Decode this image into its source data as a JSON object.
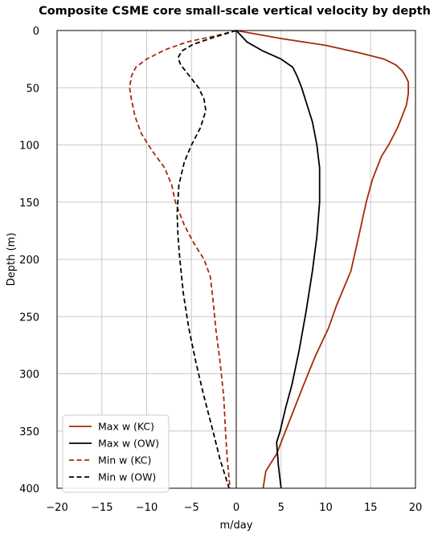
{
  "chart_data": {
    "type": "line",
    "title": "Composite CSME core small-scale vertical velocity by depth",
    "xlabel": "m/day",
    "ylabel": "Depth (m)",
    "xlim": [
      -20,
      20
    ],
    "ylim": [
      0,
      400
    ],
    "y_inverted": true,
    "grid": true,
    "legend_position": "bottom-left",
    "x_ticks": [
      "−20",
      "−15",
      "−10",
      "−5",
      "0",
      "5",
      "10",
      "15",
      "20"
    ],
    "y_ticks": [
      "0",
      "50",
      "100",
      "150",
      "200",
      "250",
      "300",
      "350",
      "400"
    ],
    "series": [
      {
        "name": "Max w (KC)",
        "color": "#a52a0c",
        "dash": "solid",
        "points": [
          [
            0,
            0
          ],
          [
            5,
            7
          ],
          [
            10,
            13
          ],
          [
            14,
            20
          ],
          [
            16.5,
            25
          ],
          [
            17.8,
            30
          ],
          [
            18.5,
            35
          ],
          [
            18.9,
            40
          ],
          [
            19.2,
            45
          ],
          [
            19.2,
            50
          ],
          [
            19.2,
            55
          ],
          [
            19.0,
            65
          ],
          [
            18.5,
            75
          ],
          [
            18.0,
            85
          ],
          [
            17.0,
            100
          ],
          [
            16.2,
            110
          ],
          [
            15.2,
            130
          ],
          [
            14.5,
            150
          ],
          [
            13.8,
            175
          ],
          [
            12.8,
            210
          ],
          [
            11.2,
            240
          ],
          [
            10.3,
            260
          ],
          [
            8.8,
            285
          ],
          [
            7.5,
            310
          ],
          [
            6.0,
            340
          ],
          [
            4.5,
            370
          ],
          [
            3.3,
            385
          ],
          [
            3.0,
            400
          ]
        ]
      },
      {
        "name": "Max w (OW)",
        "color": "#000000",
        "dash": "solid",
        "points": [
          [
            0,
            0
          ],
          [
            1.2,
            10
          ],
          [
            3,
            18
          ],
          [
            5,
            25
          ],
          [
            6.3,
            32
          ],
          [
            6.8,
            40
          ],
          [
            7.3,
            50
          ],
          [
            7.9,
            65
          ],
          [
            8.5,
            80
          ],
          [
            9.0,
            100
          ],
          [
            9.3,
            120
          ],
          [
            9.3,
            150
          ],
          [
            9.0,
            180
          ],
          [
            8.5,
            210
          ],
          [
            7.8,
            245
          ],
          [
            7.0,
            280
          ],
          [
            6.2,
            310
          ],
          [
            5.5,
            330
          ],
          [
            4.9,
            350
          ],
          [
            4.5,
            360
          ],
          [
            4.7,
            380
          ],
          [
            5.0,
            400
          ]
        ]
      },
      {
        "name": "Min w (KC)",
        "color": "#a52a0c",
        "dash": "dashed",
        "points": [
          [
            0,
            0
          ],
          [
            -2.5,
            5
          ],
          [
            -5.5,
            10
          ],
          [
            -8,
            17
          ],
          [
            -10,
            25
          ],
          [
            -11.2,
            32
          ],
          [
            -11.7,
            40
          ],
          [
            -11.9,
            50
          ],
          [
            -11.7,
            60
          ],
          [
            -11.3,
            75
          ],
          [
            -10.6,
            90
          ],
          [
            -9.4,
            105
          ],
          [
            -8.0,
            120
          ],
          [
            -7.2,
            135
          ],
          [
            -6.8,
            150
          ],
          [
            -5.8,
            170
          ],
          [
            -4.8,
            185
          ],
          [
            -3.6,
            200
          ],
          [
            -2.9,
            215
          ],
          [
            -2.6,
            235
          ],
          [
            -2.3,
            260
          ],
          [
            -1.8,
            290
          ],
          [
            -1.4,
            320
          ],
          [
            -1.2,
            350
          ],
          [
            -1.0,
            375
          ],
          [
            -0.7,
            400
          ]
        ]
      },
      {
        "name": "Min w (OW)",
        "color": "#000000",
        "dash": "dashed",
        "points": [
          [
            0,
            0
          ],
          [
            -2.5,
            6
          ],
          [
            -4.8,
            12
          ],
          [
            -6.1,
            18
          ],
          [
            -6.5,
            24
          ],
          [
            -6.2,
            30
          ],
          [
            -5.2,
            40
          ],
          [
            -4.2,
            50
          ],
          [
            -3.6,
            60
          ],
          [
            -3.4,
            70
          ],
          [
            -4.0,
            85
          ],
          [
            -5.0,
            100
          ],
          [
            -5.8,
            115
          ],
          [
            -6.4,
            135
          ],
          [
            -6.6,
            160
          ],
          [
            -6.5,
            180
          ],
          [
            -6.3,
            200
          ],
          [
            -5.9,
            230
          ],
          [
            -5.3,
            260
          ],
          [
            -4.5,
            290
          ],
          [
            -3.6,
            320
          ],
          [
            -2.6,
            350
          ],
          [
            -1.8,
            375
          ],
          [
            -0.8,
            400
          ]
        ]
      }
    ]
  }
}
